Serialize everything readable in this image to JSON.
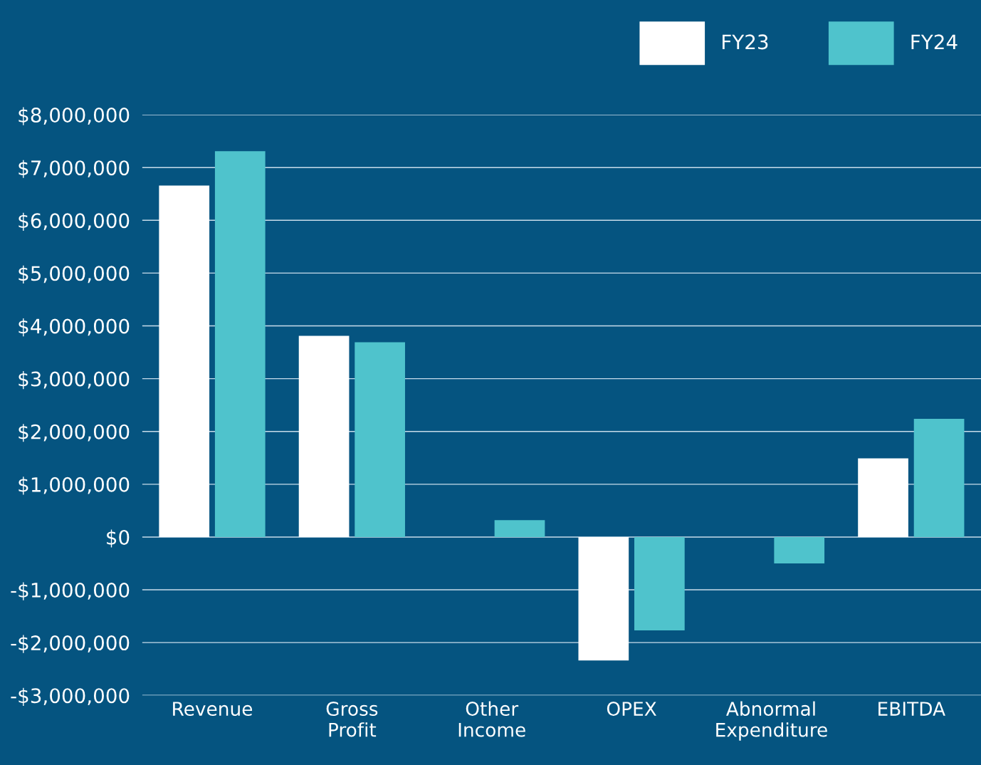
{
  "chart_data": {
    "type": "bar",
    "categories": [
      "Revenue",
      "Gross\nProfit",
      "Other\nIncome",
      "OPEX",
      "Abnormal\nExpenditure",
      "EBITDA"
    ],
    "series": [
      {
        "name": "FY23",
        "color": "#ffffff",
        "values": [
          6660000,
          3810000,
          null,
          -2340000,
          null,
          1490000
        ]
      },
      {
        "name": "FY24",
        "color": "#4fc3cc",
        "values": [
          7310000,
          3690000,
          320000,
          -1770000,
          -500000,
          2240000
        ]
      }
    ],
    "ylim": [
      -3000000,
      8000000
    ],
    "yticks": [
      {
        "value": -3000000,
        "label": "-$3,000,000"
      },
      {
        "value": -2000000,
        "label": "-$2,000,000"
      },
      {
        "value": -1000000,
        "label": "-$1,000,000"
      },
      {
        "value": 0,
        "label": "$0"
      },
      {
        "value": 1000000,
        "label": "$1,000,000"
      },
      {
        "value": 2000000,
        "label": "$2,000,000"
      },
      {
        "value": 3000000,
        "label": "$3,000,000"
      },
      {
        "value": 4000000,
        "label": "$4,000,000"
      },
      {
        "value": 5000000,
        "label": "$5,000,000"
      },
      {
        "value": 6000000,
        "label": "$6,000,000"
      },
      {
        "value": 7000000,
        "label": "$7,000,000"
      },
      {
        "value": 8000000,
        "label": "$8,000,000"
      }
    ],
    "grid": "y",
    "legend": "top right"
  }
}
